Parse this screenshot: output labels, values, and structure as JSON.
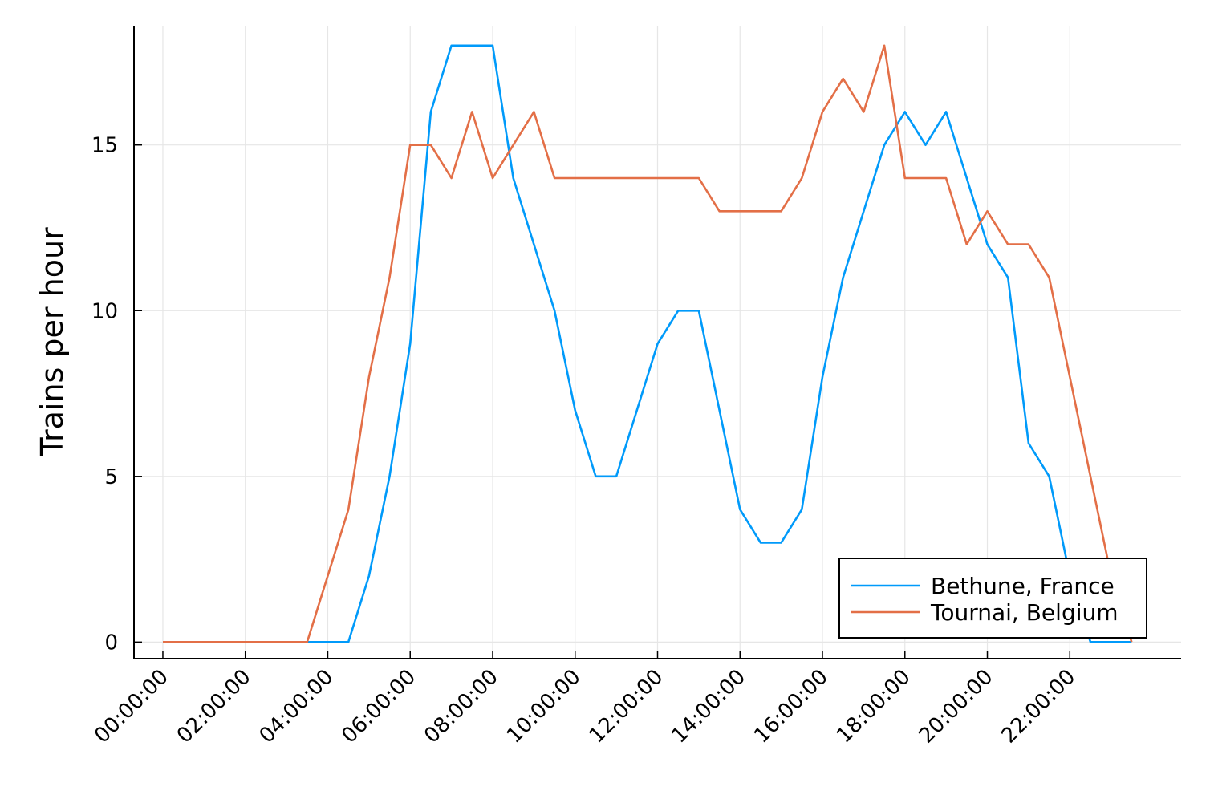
{
  "chart_data": {
    "type": "line",
    "title": "",
    "xlabel": "",
    "ylabel": "Trains per hour",
    "ylim": [
      -0.5,
      18.6
    ],
    "xlim": [
      "-00:42:00",
      "24:42:00"
    ],
    "grid": true,
    "legend_position": "bottom-right",
    "x_ticks": [
      "00:00:00",
      "02:00:00",
      "04:00:00",
      "06:00:00",
      "08:00:00",
      "10:00:00",
      "12:00:00",
      "14:00:00",
      "16:00:00",
      "18:00:00",
      "20:00:00",
      "22:00:00"
    ],
    "y_ticks": [
      0,
      5,
      10,
      15
    ],
    "x": [
      "00:00:00",
      "00:30:00",
      "01:00:00",
      "01:30:00",
      "02:00:00",
      "02:30:00",
      "03:00:00",
      "03:30:00",
      "04:00:00",
      "04:30:00",
      "05:00:00",
      "05:30:00",
      "06:00:00",
      "06:30:00",
      "07:00:00",
      "07:30:00",
      "08:00:00",
      "08:30:00",
      "09:00:00",
      "09:30:00",
      "10:00:00",
      "10:30:00",
      "11:00:00",
      "11:30:00",
      "12:00:00",
      "12:30:00",
      "13:00:00",
      "13:30:00",
      "14:00:00",
      "14:30:00",
      "15:00:00",
      "15:30:00",
      "16:00:00",
      "16:30:00",
      "17:00:00",
      "17:30:00",
      "18:00:00",
      "18:30:00",
      "19:00:00",
      "19:30:00",
      "20:00:00",
      "20:30:00",
      "21:00:00",
      "21:30:00",
      "22:00:00",
      "22:30:00",
      "23:00:00",
      "23:30:00"
    ],
    "series": [
      {
        "name": "Bethune, France",
        "color": "#009AFA",
        "values": [
          0,
          0,
          0,
          0,
          0,
          0,
          0,
          0,
          0,
          0,
          2,
          5,
          9,
          16,
          18,
          18,
          18,
          14,
          12,
          10,
          7,
          5,
          5,
          7,
          9,
          10,
          10,
          7,
          4,
          3,
          3,
          4,
          8,
          11,
          13,
          15,
          16,
          15,
          16,
          14,
          12,
          11,
          6,
          5,
          2,
          0,
          0,
          0
        ]
      },
      {
        "name": "Tournai, Belgium",
        "color": "#E36F47",
        "values": [
          0,
          0,
          0,
          0,
          0,
          0,
          0,
          0,
          2,
          4,
          8,
          11,
          15,
          15,
          14,
          16,
          14,
          15,
          16,
          14,
          14,
          14,
          14,
          14,
          14,
          14,
          14,
          13,
          13,
          13,
          13,
          14,
          16,
          17,
          16,
          18,
          14,
          14,
          14,
          12,
          13,
          12,
          12,
          11,
          8,
          5,
          2,
          0
        ]
      }
    ]
  }
}
